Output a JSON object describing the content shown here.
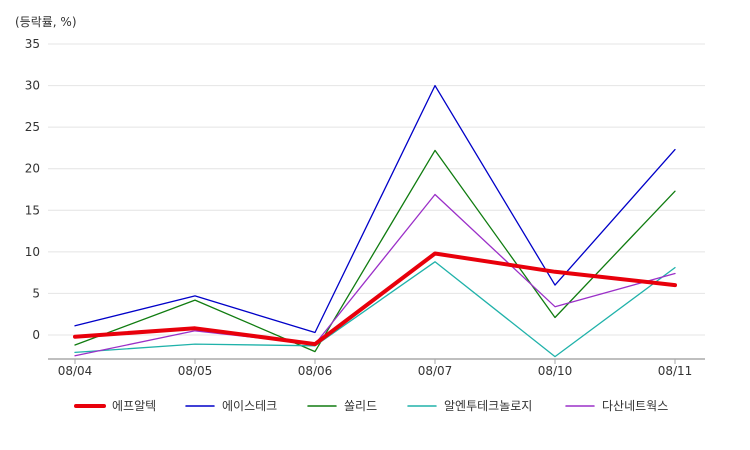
{
  "chart_data": {
    "type": "line",
    "unit_label": "(등락률, %)",
    "categories": [
      "08/04",
      "08/05",
      "08/06",
      "08/07",
      "08/10",
      "08/11"
    ],
    "ylim": [
      -3,
      35
    ],
    "yticks": [
      0,
      5,
      10,
      15,
      20,
      25,
      30,
      35
    ],
    "grid": true,
    "legend_position": "bottom",
    "series": [
      {
        "name": "에프알텍",
        "color": "#e8000b",
        "bold": true,
        "values": [
          -0.2,
          0.8,
          -1.1,
          9.8,
          7.6,
          6.0
        ]
      },
      {
        "name": "에이스테크",
        "color": "#0000c8",
        "bold": false,
        "values": [
          1.1,
          4.7,
          0.3,
          30.0,
          6.0,
          22.3
        ]
      },
      {
        "name": "쏠리드",
        "color": "#107c10",
        "bold": false,
        "values": [
          -1.2,
          4.2,
          -2.0,
          22.2,
          2.1,
          17.3
        ]
      },
      {
        "name": "알엔투테크놀로지",
        "color": "#20b2aa",
        "bold": false,
        "values": [
          -2.1,
          -1.1,
          -1.3,
          8.8,
          -2.6,
          8.1
        ]
      },
      {
        "name": "다산네트웍스",
        "color": "#9b30c8",
        "bold": false,
        "values": [
          -2.5,
          0.5,
          -1.1,
          16.9,
          3.4,
          7.4
        ]
      }
    ]
  }
}
